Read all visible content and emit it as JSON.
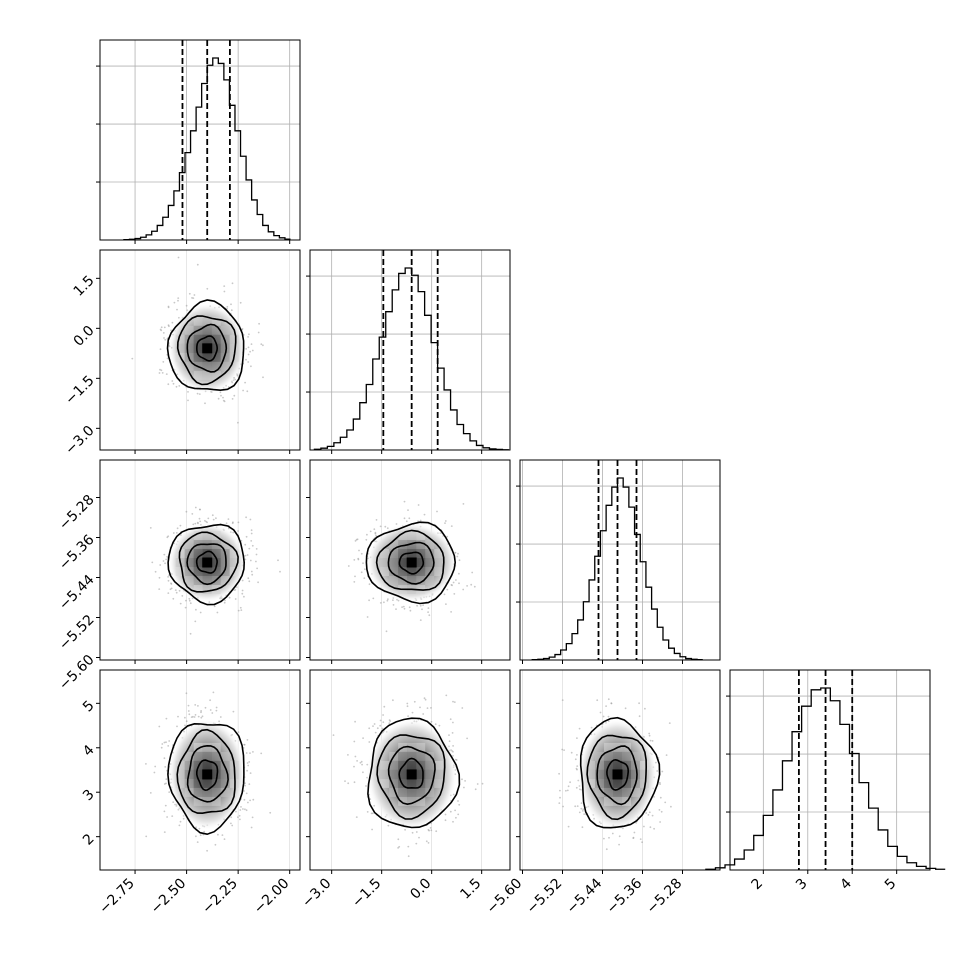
{
  "chart_data": {
    "type": "corner",
    "title": "",
    "n_params": 4,
    "grid": true,
    "colors": {
      "line": "#000000",
      "grid": "#b0b0b0",
      "points": "#9a9a9a",
      "density_dark": "#1a1a1a"
    },
    "params": [
      {
        "label": "",
        "mean": -2.4,
        "sigma": 0.09,
        "range": [
          -2.92,
          -1.95
        ],
        "ticks": [
          -2.75,
          -2.5,
          -2.25,
          -2.0
        ],
        "tick_labels": [
          "−2.75",
          "−2.50",
          "−2.25",
          "−2.00"
        ],
        "quantiles": [
          -2.52,
          -2.4,
          -2.29
        ],
        "hist_bins": [
          -2.885,
          -2.855,
          -2.825,
          -2.795,
          -2.765,
          -2.735,
          -2.705,
          -2.675,
          -2.645,
          -2.615,
          -2.585,
          -2.555,
          -2.525,
          -2.495,
          -2.465,
          -2.435,
          -2.405,
          -2.375,
          -2.345,
          -2.315,
          -2.285,
          -2.255,
          -2.225,
          -2.195,
          -2.165,
          -2.135,
          -2.105,
          -2.075,
          -2.045,
          -2.015,
          -1.985
        ],
        "hist_counts": [
          0.002,
          0.004,
          0.008,
          0.015,
          0.028,
          0.048,
          0.08,
          0.125,
          0.19,
          0.27,
          0.37,
          0.48,
          0.6,
          0.73,
          0.86,
          0.96,
          1.0,
          0.97,
          0.88,
          0.74,
          0.6,
          0.46,
          0.33,
          0.22,
          0.14,
          0.08,
          0.045,
          0.024,
          0.012,
          0.005
        ]
      },
      {
        "label": "",
        "mean": -0.6,
        "sigma": 0.65,
        "range": [
          -3.65,
          2.35
        ],
        "ticks": [
          -3.0,
          -1.5,
          0.0,
          1.5
        ],
        "tick_labels": [
          "−3.0",
          "−1.5",
          "0.0",
          "1.5"
        ],
        "quantiles": [
          -1.45,
          -0.6,
          0.18
        ],
        "hist_counts": [
          0.004,
          0.01,
          0.02,
          0.04,
          0.07,
          0.11,
          0.17,
          0.26,
          0.36,
          0.5,
          0.62,
          0.76,
          0.88,
          0.97,
          1.0,
          0.96,
          0.87,
          0.74,
          0.59,
          0.45,
          0.33,
          0.22,
          0.14,
          0.09,
          0.05,
          0.025,
          0.012,
          0.006,
          0.003,
          0.001
        ]
      },
      {
        "label": "",
        "mean": -5.41,
        "sigma": 0.038,
        "range": [
          -5.605,
          -5.205
        ],
        "ticks": [
          -5.6,
          -5.52,
          -5.44,
          -5.36,
          -5.28
        ],
        "tick_labels": [
          "−5.60",
          "−5.52",
          "−5.44",
          "−5.36",
          "−5.28"
        ],
        "quantiles": [
          -5.448,
          -5.41,
          -5.372
        ],
        "hist_counts": [
          0.002,
          0.004,
          0.008,
          0.016,
          0.03,
          0.055,
          0.09,
          0.145,
          0.22,
          0.32,
          0.44,
          0.57,
          0.71,
          0.85,
          0.95,
          1.0,
          0.95,
          0.84,
          0.69,
          0.54,
          0.4,
          0.28,
          0.18,
          0.11,
          0.065,
          0.036,
          0.018,
          0.008,
          0.004,
          0.002
        ]
      },
      {
        "label": "",
        "mean": 3.4,
        "sigma": 0.6,
        "range": [
          1.25,
          5.75
        ],
        "ticks": [
          2,
          3,
          4,
          5
        ],
        "tick_labels": [
          "2",
          "3",
          "4",
          "5"
        ],
        "quantiles": [
          2.8,
          3.4,
          4.0
        ],
        "hist_counts": [
          0.004,
          0.012,
          0.028,
          0.06,
          0.11,
          0.19,
          0.3,
          0.44,
          0.6,
          0.76,
          0.9,
          0.99,
          1.0,
          0.93,
          0.8,
          0.64,
          0.48,
          0.34,
          0.22,
          0.13,
          0.075,
          0.04,
          0.02,
          0.009,
          0.004
        ]
      }
    ]
  }
}
